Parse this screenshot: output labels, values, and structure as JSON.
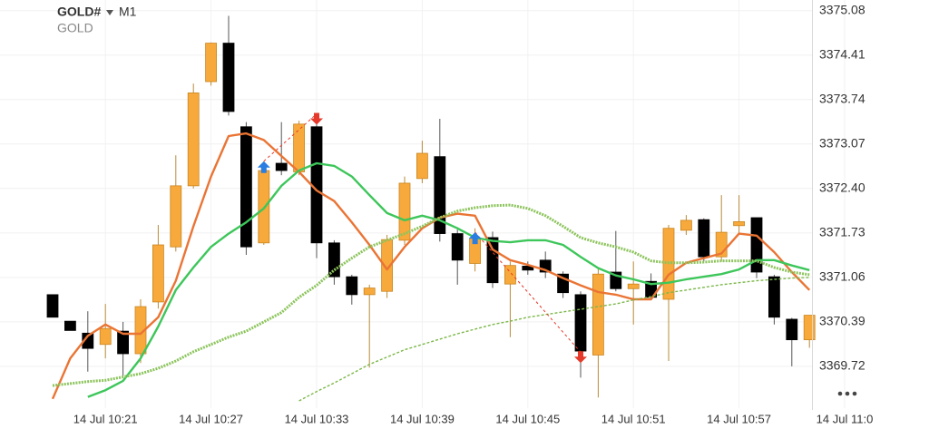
{
  "chart_data": {
    "type": "candlestick",
    "title": "GOLD#",
    "timeframe": "M1",
    "subtitle": "GOLD",
    "categories": [
      null,
      null,
      null,
      "14 Jul 10:21",
      null,
      null,
      null,
      null,
      null,
      "14 Jul 10:27",
      null,
      null,
      null,
      null,
      null,
      "14 Jul 10:33",
      null,
      null,
      null,
      null,
      null,
      "14 Jul 10:39",
      null,
      null,
      null,
      null,
      null,
      "14 Jul 10:45",
      null,
      null,
      null,
      null,
      null,
      "14 Jul 10:51",
      null,
      null,
      null,
      null,
      null,
      "14 Jul 10:57",
      null,
      null,
      null,
      null,
      null,
      "14 Jul 11:0"
    ],
    "open": [
      3370.8,
      3370.4,
      3370.22,
      3370.05,
      3370.25,
      3369.91,
      3370.69,
      3371.52,
      3372.44,
      3374.01,
      3374.59,
      3373.33,
      3371.58,
      3372.78,
      3372.65,
      3373.33,
      3371.58,
      3371.07,
      3370.8,
      3370.85,
      3371.62,
      3372.55,
      3372.88,
      3371.72,
      3371.27,
      3371.66,
      3370.96,
      3371.23,
      3371.32,
      3371.11,
      3370.8,
      3369.89,
      3371.14,
      3370.89,
      3371.0,
      3370.73,
      3371.77,
      3371.93,
      3371.37,
      3371.84,
      3371.96,
      3371.07,
      3370.43,
      3370.12,
      null,
      null
    ],
    "high": [
      3370.8,
      3370.4,
      3370.55,
      3370.66,
      3370.39,
      3370.73,
      3371.85,
      3372.9,
      3373.98,
      3374.6,
      3375.0,
      3373.4,
      3372.78,
      3373.4,
      3373.42,
      3373.4,
      3371.62,
      3371.1,
      3370.95,
      3371.7,
      3372.58,
      3373.12,
      3373.45,
      3371.78,
      3371.8,
      3371.75,
      3371.3,
      3371.3,
      3371.45,
      3371.15,
      3370.85,
      3371.2,
      3371.76,
      3371.3,
      3371.12,
      3371.85,
      3372.0,
      3371.95,
      3372.3,
      3372.3,
      3371.96,
      3371.1,
      3370.45,
      3370.49,
      null,
      null
    ],
    "low": [
      3370.46,
      3370.26,
      3369.64,
      3369.84,
      3369.57,
      3369.77,
      3370.59,
      3371.45,
      3372.4,
      3373.95,
      3373.5,
      3371.4,
      3371.55,
      3372.6,
      3372.6,
      3371.35,
      3370.95,
      3370.65,
      3369.7,
      3370.75,
      3371.55,
      3372.48,
      3371.6,
      3370.95,
      3371.15,
      3370.9,
      3370.16,
      3371.1,
      3371.05,
      3370.75,
      3369.55,
      3369.25,
      3370.85,
      3370.35,
      3370.72,
      3369.8,
      3371.7,
      3371.3,
      3371.3,
      3371.7,
      3371.05,
      3370.35,
      3369.72,
      3370.0,
      null,
      null
    ],
    "close": [
      3370.46,
      3370.26,
      3369.99,
      3370.29,
      3369.91,
      3370.62,
      3371.55,
      3372.44,
      3373.84,
      3374.59,
      3373.56,
      3371.52,
      3372.67,
      3372.67,
      3373.37,
      3371.58,
      3371.07,
      3370.8,
      3370.9,
      3371.63,
      3372.48,
      3372.93,
      3371.72,
      3371.32,
      3371.65,
      3370.98,
      3371.24,
      3371.17,
      3371.14,
      3370.83,
      3369.95,
      3371.11,
      3370.89,
      3370.96,
      3370.76,
      3371.8,
      3371.92,
      3371.37,
      3371.74,
      3371.9,
      3371.14,
      3370.46,
      3370.12,
      3370.49,
      null,
      null
    ],
    "up_color": "#f8a93b",
    "down_color": "#000000",
    "series": [
      {
        "color": "#ea7434",
        "style": "solid",
        "values": [
          3369.23,
          3369.84,
          3370.18,
          3370.35,
          3370.21,
          3370.21,
          3370.46,
          3371.01,
          3371.83,
          3372.58,
          3373.19,
          3373.23,
          3373.13,
          3372.89,
          3372.65,
          3372.37,
          3372.21,
          3371.89,
          3371.55,
          3371.18,
          3371.52,
          3371.8,
          3371.96,
          3372.02,
          3371.99,
          3371.48,
          3371.32,
          3371.25,
          3371.17,
          3371.05,
          3370.94,
          3370.84,
          3370.8,
          3370.73,
          3370.73,
          3371.1,
          3371.28,
          3371.35,
          3371.42,
          3371.72,
          3371.69,
          3371.44,
          3371.14,
          3370.87,
          null,
          null
        ]
      },
      {
        "color": "#3dc65a",
        "style": "solid",
        "values": [
          null,
          null,
          3369.26,
          3369.36,
          3369.5,
          3369.84,
          3370.32,
          3370.87,
          3371.21,
          3371.52,
          3371.72,
          3371.89,
          3372.1,
          3372.44,
          3372.67,
          3372.78,
          3372.74,
          3372.58,
          3372.3,
          3372.03,
          3371.92,
          3371.99,
          3371.92,
          3371.8,
          3371.66,
          3371.61,
          3371.59,
          3371.62,
          3371.62,
          3371.55,
          3371.37,
          3371.2,
          3371.09,
          3371.03,
          3370.96,
          3370.98,
          3371.03,
          3371.07,
          3371.11,
          3371.18,
          3371.32,
          3371.32,
          3371.24,
          3371.17,
          null,
          null
        ]
      },
      {
        "color": "#8cc45c",
        "style": "dotted",
        "values": [
          3369.43,
          3369.46,
          3369.49,
          3369.51,
          3369.56,
          3369.61,
          3369.69,
          3369.8,
          3369.94,
          3370.05,
          3370.16,
          3370.25,
          3370.39,
          3370.53,
          3370.76,
          3370.94,
          3371.17,
          3371.35,
          3371.52,
          3371.62,
          3371.72,
          3371.83,
          3371.96,
          3372.06,
          3372.11,
          3372.14,
          3372.15,
          3372.1,
          3371.99,
          3371.83,
          3371.66,
          3371.58,
          3371.52,
          3371.44,
          3371.31,
          3371.28,
          3371.28,
          3371.29,
          3371.31,
          3371.31,
          3371.31,
          3371.21,
          3371.14,
          3371.1,
          null,
          null
        ]
      },
      {
        "color": "#7cb84a",
        "style": "dashed",
        "values": [
          null,
          null,
          null,
          null,
          null,
          null,
          null,
          null,
          null,
          null,
          null,
          null,
          null,
          null,
          3369.2,
          3369.34,
          3369.47,
          3369.61,
          3369.75,
          3369.86,
          3369.97,
          3370.05,
          3370.13,
          3370.21,
          3370.28,
          3370.35,
          3370.4,
          3370.46,
          3370.5,
          3370.54,
          3370.58,
          3370.62,
          3370.66,
          3370.72,
          3370.77,
          3370.83,
          3370.87,
          3370.91,
          3370.95,
          3370.98,
          3371.01,
          3371.03,
          3371.05,
          3371.06,
          null,
          null
        ]
      }
    ],
    "up_arrows": [
      {
        "index": 12,
        "price": 3372.81
      },
      {
        "index": 24,
        "price": 3371.74
      }
    ],
    "down_arrows": [
      {
        "index": 15,
        "price": 3373.36
      },
      {
        "index": 30,
        "price": 3369.77
      }
    ],
    "ylim": [
      3369.09,
      3375.24
    ],
    "yticks": [
      3375.08,
      3374.41,
      3373.74,
      3373.07,
      {
        "value": 3372.4,
        "label": "3372.40"
      },
      3371.73,
      3371.06,
      3370.39,
      3369.72
    ],
    "grid": true
  }
}
